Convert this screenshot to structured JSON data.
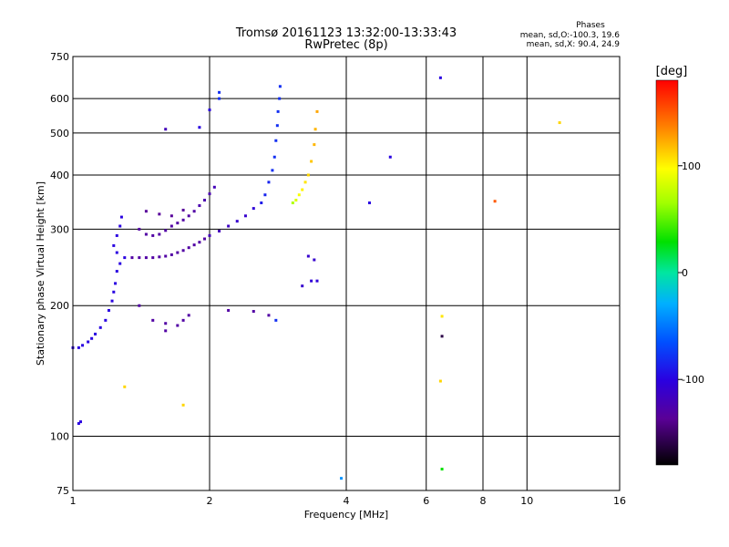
{
  "chart_data": {
    "type": "scatter",
    "title": "Tromsø 20161123 13:32:00-13:33:43",
    "subtitle": "RwPretec (8p)",
    "xlabel": "Frequency [MHz]",
    "ylabel": "Stationary phase Virtual Height [km]",
    "x_scale": "log",
    "y_scale": "log",
    "xlim": [
      1,
      16
    ],
    "ylim": [
      75,
      750
    ],
    "x_ticks": [
      1,
      2,
      4,
      6,
      8,
      10,
      16
    ],
    "x_tick_labels": [
      "1",
      "2",
      "4",
      "6",
      "8",
      "10",
      "16"
    ],
    "y_ticks": [
      75,
      100,
      200,
      300,
      400,
      500,
      600,
      750
    ],
    "y_tick_labels": [
      "75",
      "100",
      "200",
      "300",
      "400",
      "500",
      "600",
      "750"
    ],
    "grid": true,
    "phase_stats": {
      "heading": "Phases",
      "line_o": "mean, sd,O:-100.3, 19.6",
      "line_x": "mean, sd,X: 90.4, 24.9"
    },
    "colorbar": {
      "label": "[deg]",
      "range": [
        -180,
        180
      ],
      "ticks": [
        100,
        0,
        -100
      ],
      "tick_labels": [
        "100",
        "0",
        "-100"
      ]
    },
    "series": [
      {
        "points": [
          [
            1.0,
            160,
            -100
          ],
          [
            1.03,
            160,
            -100
          ],
          [
            1.05,
            162,
            -100
          ],
          [
            1.08,
            165,
            -100
          ],
          [
            1.1,
            168,
            -100
          ],
          [
            1.12,
            172,
            -100
          ],
          [
            1.15,
            178,
            -100
          ],
          [
            1.18,
            185,
            -100
          ],
          [
            1.2,
            195,
            -100
          ],
          [
            1.22,
            205,
            -100
          ],
          [
            1.23,
            215,
            -100
          ],
          [
            1.24,
            225,
            -100
          ],
          [
            1.25,
            240,
            -100
          ],
          [
            1.27,
            250,
            -100
          ],
          [
            1.3,
            258,
            -100
          ],
          [
            1.25,
            265,
            -100
          ],
          [
            1.23,
            275,
            -100
          ],
          [
            1.25,
            290,
            -100
          ],
          [
            1.27,
            305,
            -100
          ],
          [
            1.28,
            320,
            -100
          ],
          [
            1.03,
            107,
            -100
          ],
          [
            1.04,
            108,
            -100
          ],
          [
            1.35,
            258,
            -130
          ],
          [
            1.4,
            258,
            -130
          ],
          [
            1.45,
            258,
            -130
          ],
          [
            1.5,
            258,
            -130
          ],
          [
            1.55,
            259,
            -130
          ],
          [
            1.6,
            260,
            -130
          ],
          [
            1.65,
            262,
            -130
          ],
          [
            1.7,
            265,
            -130
          ],
          [
            1.75,
            268,
            -130
          ],
          [
            1.8,
            272,
            -130
          ],
          [
            1.85,
            276,
            -130
          ],
          [
            1.9,
            280,
            -130
          ],
          [
            1.95,
            285,
            -130
          ],
          [
            2.0,
            290,
            -120
          ],
          [
            2.1,
            297,
            -120
          ],
          [
            2.2,
            305,
            -115
          ],
          [
            2.3,
            313,
            -110
          ],
          [
            2.4,
            322,
            -110
          ],
          [
            2.5,
            335,
            -105
          ],
          [
            1.4,
            300,
            -130
          ],
          [
            1.45,
            292,
            -130
          ],
          [
            1.5,
            290,
            -130
          ],
          [
            1.55,
            292,
            -130
          ],
          [
            1.6,
            298,
            -130
          ],
          [
            1.65,
            305,
            -130
          ],
          [
            1.7,
            310,
            -130
          ],
          [
            1.75,
            315,
            -130
          ],
          [
            1.8,
            322,
            -130
          ],
          [
            1.85,
            330,
            -130
          ],
          [
            1.9,
            340,
            -125
          ],
          [
            1.95,
            350,
            -125
          ],
          [
            2.0,
            362,
            -125
          ],
          [
            2.05,
            375,
            -120
          ],
          [
            1.45,
            330,
            -135
          ],
          [
            1.55,
            325,
            -135
          ],
          [
            1.65,
            322,
            -135
          ],
          [
            1.75,
            332,
            -135
          ],
          [
            2.6,
            345,
            -90
          ],
          [
            2.65,
            360,
            -85
          ],
          [
            2.7,
            385,
            -85
          ],
          [
            2.75,
            410,
            -80
          ],
          [
            2.78,
            440,
            -80
          ],
          [
            2.8,
            480,
            -80
          ],
          [
            2.82,
            520,
            -80
          ],
          [
            2.83,
            560,
            -80
          ],
          [
            2.85,
            600,
            -80
          ],
          [
            2.86,
            640,
            -80
          ],
          [
            3.05,
            345,
            70
          ],
          [
            3.1,
            350,
            85
          ],
          [
            3.15,
            360,
            95
          ],
          [
            3.2,
            370,
            100
          ],
          [
            3.25,
            385,
            105
          ],
          [
            3.3,
            400,
            110
          ],
          [
            3.35,
            430,
            115
          ],
          [
            3.4,
            470,
            120
          ],
          [
            3.42,
            510,
            120
          ],
          [
            3.45,
            560,
            125
          ],
          [
            3.3,
            260,
            -110
          ],
          [
            3.4,
            255,
            -110
          ],
          [
            3.35,
            228,
            -105
          ],
          [
            3.45,
            228,
            -105
          ],
          [
            3.2,
            222,
            -110
          ],
          [
            1.4,
            200,
            -130
          ],
          [
            1.5,
            185,
            -130
          ],
          [
            1.6,
            182,
            -130
          ],
          [
            1.7,
            180,
            -130
          ],
          [
            1.75,
            185,
            -130
          ],
          [
            1.8,
            190,
            -130
          ],
          [
            1.6,
            175,
            -130
          ],
          [
            2.2,
            195,
            -130
          ],
          [
            2.5,
            194,
            -130
          ],
          [
            2.7,
            190,
            -130
          ],
          [
            1.6,
            510,
            -120
          ],
          [
            1.9,
            515,
            -100
          ],
          [
            2.0,
            565,
            -100
          ],
          [
            2.1,
            600,
            -80
          ],
          [
            2.1,
            620,
            -80
          ],
          [
            1.3,
            130,
            110
          ],
          [
            1.75,
            118,
            110
          ],
          [
            2.8,
            185,
            -80
          ],
          [
            4.5,
            345,
            -100
          ],
          [
            5.0,
            440,
            -100
          ],
          [
            3.9,
            80,
            -40
          ],
          [
            6.45,
            670,
            -100
          ],
          [
            6.5,
            189,
            105
          ],
          [
            6.5,
            170,
            -160
          ],
          [
            6.45,
            134,
            110
          ],
          [
            6.5,
            84,
            30
          ],
          [
            8.5,
            348,
            150
          ],
          [
            11.8,
            528,
            110
          ]
        ]
      }
    ]
  }
}
